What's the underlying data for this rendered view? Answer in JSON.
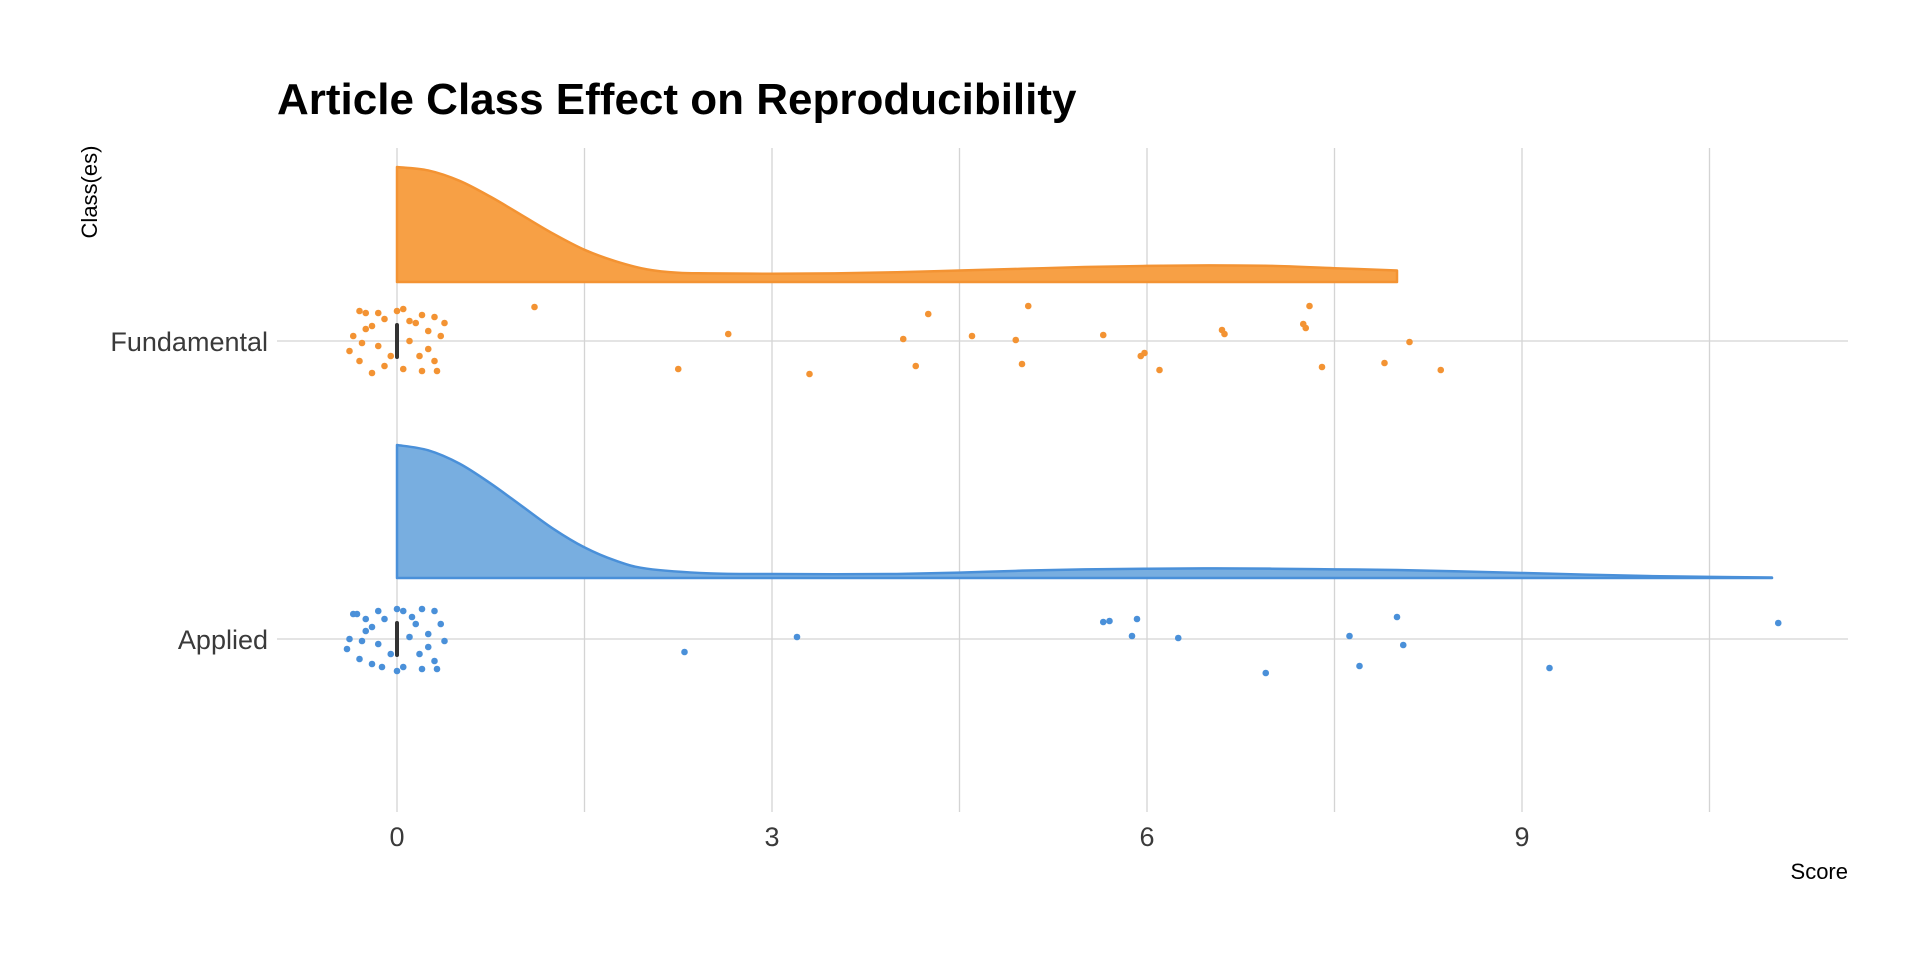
{
  "colors": {
    "fundamental": "#f7a045",
    "fundamental_stroke": "#f39333",
    "applied": "#78aee0",
    "applied_stroke": "#4a90d9",
    "median": "#333333",
    "grid": "#d4d4d4",
    "background": "#ffffff"
  },
  "chart_data": {
    "type": "raincloud",
    "title": "Article Class Effect on Reproducibility",
    "xlabel": "Score",
    "ylabel": "Class(es)",
    "xlim": [
      -1.5,
      11.8
    ],
    "xticks": [
      0,
      3,
      6,
      9
    ],
    "x_minor_gridlines": [
      1.5,
      4.5,
      7.5,
      10.5
    ],
    "grid": true,
    "legend": "none",
    "categories": [
      "Fundamental",
      "Applied"
    ],
    "series": [
      {
        "name": "Fundamental",
        "median": 0,
        "density": {
          "x": [
            0,
            0.25,
            0.5,
            0.75,
            1.0,
            1.25,
            1.5,
            1.75,
            2.0,
            2.25,
            2.5,
            3.0,
            3.5,
            4.0,
            4.5,
            5.0,
            5.5,
            6.0,
            6.5,
            7.0,
            7.5,
            8.0
          ],
          "y": [
            1.0,
            0.97,
            0.88,
            0.74,
            0.58,
            0.42,
            0.28,
            0.18,
            0.11,
            0.08,
            0.075,
            0.072,
            0.075,
            0.085,
            0.1,
            0.115,
            0.13,
            0.14,
            0.145,
            0.14,
            0.12,
            0.1
          ]
        },
        "points": [
          [
            -0.3,
            0.3
          ],
          [
            -0.25,
            0.28
          ],
          [
            0.0,
            0.3
          ],
          [
            0.05,
            0.32
          ],
          [
            0.2,
            0.26
          ],
          [
            0.3,
            0.24
          ],
          [
            -0.2,
            0.15
          ],
          [
            -0.1,
            0.22
          ],
          [
            0.15,
            0.18
          ],
          [
            -0.35,
            0.05
          ],
          [
            -0.15,
            -0.05
          ],
          [
            0.1,
            0.0
          ],
          [
            0.25,
            -0.08
          ],
          [
            -0.3,
            -0.2
          ],
          [
            -0.05,
            -0.15
          ],
          [
            0.3,
            -0.2
          ],
          [
            0.05,
            -0.28
          ],
          [
            -0.2,
            -0.32
          ],
          [
            0.2,
            -0.3
          ],
          [
            -0.25,
            0.12
          ],
          [
            0.35,
            0.05
          ],
          [
            0.38,
            0.18
          ],
          [
            -0.38,
            -0.1
          ],
          [
            0.1,
            0.2
          ],
          [
            -0.1,
            -0.25
          ],
          [
            0.25,
            0.1
          ],
          [
            -0.15,
            0.28
          ],
          [
            0.18,
            -0.15
          ],
          [
            -0.28,
            -0.02
          ],
          [
            0.32,
            -0.3
          ],
          [
            1.1,
            0.34
          ],
          [
            2.25,
            -0.28
          ],
          [
            2.65,
            0.07
          ],
          [
            3.3,
            -0.33
          ],
          [
            4.05,
            0.02
          ],
          [
            4.15,
            -0.25
          ],
          [
            4.25,
            0.27
          ],
          [
            4.6,
            0.05
          ],
          [
            4.95,
            0.01
          ],
          [
            5.0,
            -0.23
          ],
          [
            5.05,
            0.35
          ],
          [
            5.65,
            0.06
          ],
          [
            5.95,
            -0.15
          ],
          [
            5.98,
            -0.12
          ],
          [
            6.1,
            -0.29
          ],
          [
            6.6,
            0.11
          ],
          [
            6.62,
            0.07
          ],
          [
            7.25,
            0.17
          ],
          [
            7.27,
            0.13
          ],
          [
            7.3,
            0.35
          ],
          [
            7.4,
            -0.26
          ],
          [
            7.9,
            -0.22
          ],
          [
            8.1,
            -0.01
          ],
          [
            8.35,
            -0.29
          ]
        ]
      },
      {
        "name": "Applied",
        "median": 0,
        "density": {
          "x": [
            0,
            0.25,
            0.5,
            0.75,
            1.0,
            1.25,
            1.5,
            1.75,
            2.0,
            2.5,
            3.0,
            3.5,
            4.0,
            4.5,
            5.0,
            5.5,
            6.0,
            6.5,
            7.0,
            7.5,
            8.0,
            8.5,
            9.0,
            9.5,
            10.0,
            10.5,
            11.0
          ],
          "y": [
            1.0,
            0.96,
            0.86,
            0.71,
            0.54,
            0.37,
            0.23,
            0.13,
            0.07,
            0.035,
            0.03,
            0.028,
            0.03,
            0.04,
            0.055,
            0.065,
            0.07,
            0.072,
            0.07,
            0.065,
            0.06,
            0.05,
            0.038,
            0.025,
            0.015,
            0.008,
            0.004
          ]
        },
        "points": [
          [
            -0.35,
            0.25
          ],
          [
            -0.25,
            0.2
          ],
          [
            0.0,
            0.3
          ],
          [
            0.05,
            0.28
          ],
          [
            0.2,
            0.3
          ],
          [
            0.3,
            0.28
          ],
          [
            -0.2,
            0.12
          ],
          [
            -0.1,
            0.2
          ],
          [
            0.15,
            0.15
          ],
          [
            -0.38,
            0.0
          ],
          [
            -0.15,
            -0.05
          ],
          [
            0.1,
            0.02
          ],
          [
            0.25,
            -0.08
          ],
          [
            -0.3,
            -0.2
          ],
          [
            -0.05,
            -0.15
          ],
          [
            0.3,
            -0.22
          ],
          [
            0.05,
            -0.28
          ],
          [
            -0.2,
            -0.25
          ],
          [
            0.2,
            -0.3
          ],
          [
            -0.25,
            0.08
          ],
          [
            0.38,
            -0.02
          ],
          [
            0.35,
            0.15
          ],
          [
            -0.4,
            -0.1
          ],
          [
            0.12,
            0.22
          ],
          [
            -0.12,
            -0.28
          ],
          [
            0.25,
            0.05
          ],
          [
            -0.15,
            0.28
          ],
          [
            0.18,
            -0.15
          ],
          [
            -0.28,
            -0.02
          ],
          [
            0.32,
            -0.3
          ],
          [
            0.0,
            -0.32
          ],
          [
            -0.32,
            0.25
          ],
          [
            2.3,
            -0.13
          ],
          [
            3.2,
            0.02
          ],
          [
            5.65,
            0.17
          ],
          [
            5.7,
            0.18
          ],
          [
            5.88,
            0.03
          ],
          [
            5.92,
            0.2
          ],
          [
            6.25,
            0.01
          ],
          [
            6.95,
            -0.34
          ],
          [
            7.62,
            0.03
          ],
          [
            7.7,
            -0.27
          ],
          [
            8.0,
            0.22
          ],
          [
            8.05,
            -0.06
          ],
          [
            9.22,
            -0.29
          ],
          [
            11.05,
            0.16
          ]
        ]
      }
    ]
  }
}
